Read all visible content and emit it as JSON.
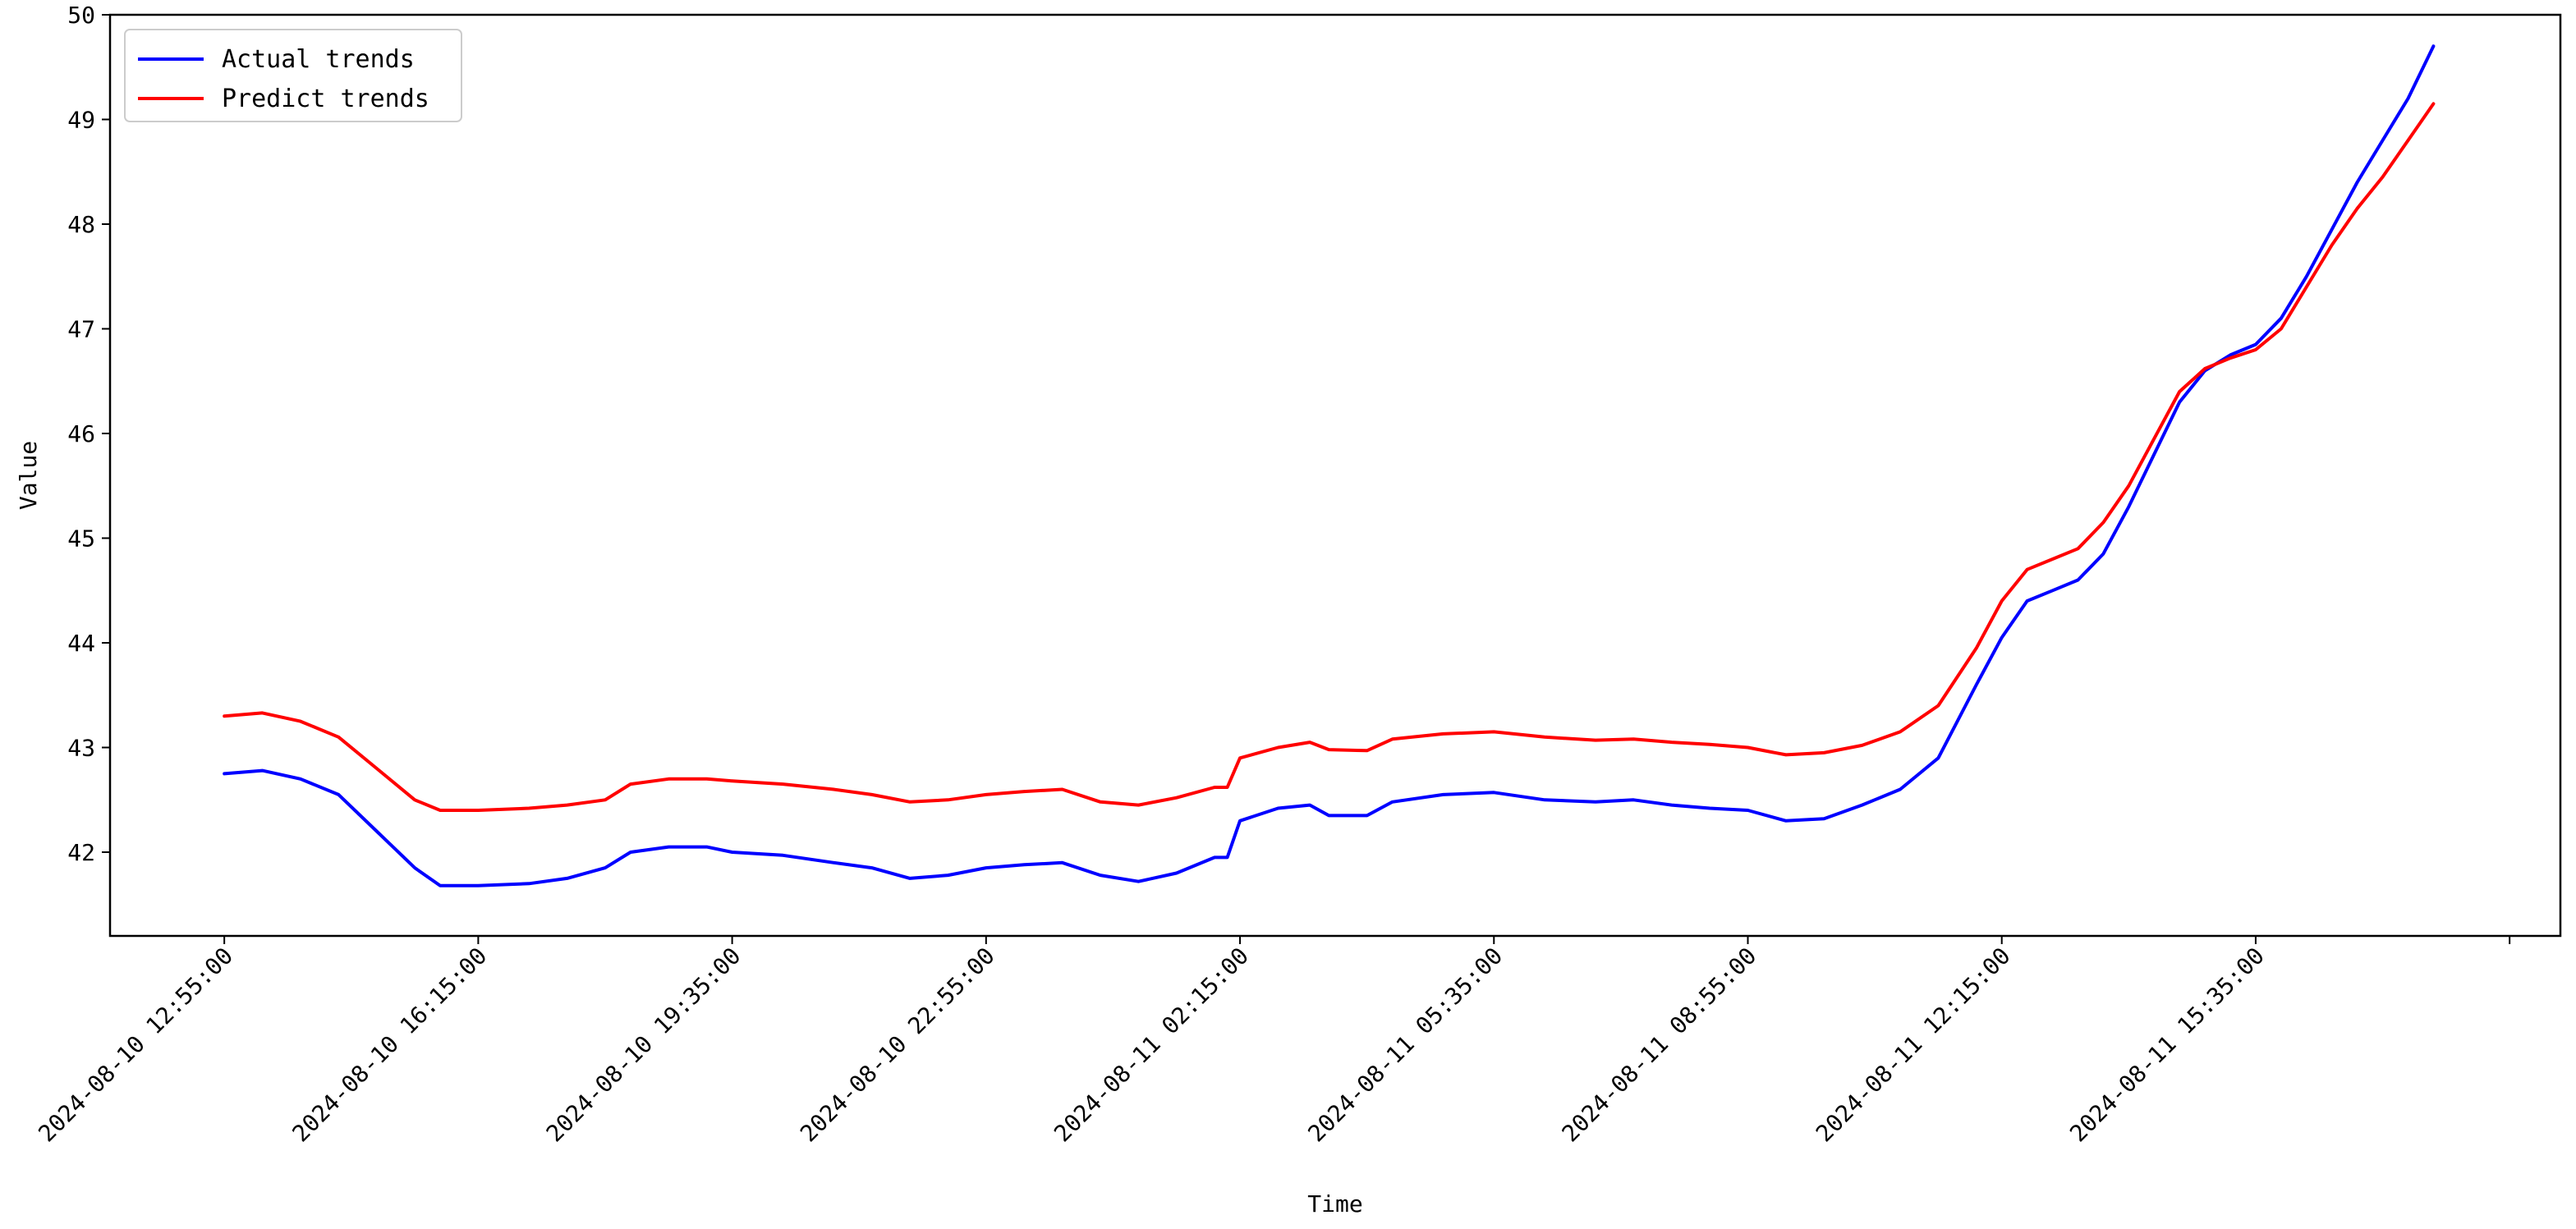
{
  "chart_data": {
    "type": "line",
    "title": "",
    "xlabel": "Time",
    "ylabel": "Value",
    "x_tick_labels": [
      "2024-08-10 12:55:00",
      "2024-08-10 16:15:00",
      "2024-08-10 19:35:00",
      "2024-08-10 22:55:00",
      "2024-08-11 02:15:00",
      "2024-08-11 05:35:00",
      "2024-08-11 08:55:00",
      "2024-08-11 12:15:00",
      "2024-08-11 15:35:00"
    ],
    "y_ticks": [
      42,
      43,
      44,
      45,
      46,
      47,
      48,
      49,
      50
    ],
    "ylim": [
      41.2,
      50.0
    ],
    "xlim": [
      "2024-08-10 11:25:00",
      "2024-08-11 19:35:00"
    ],
    "grid": false,
    "legend_position": "upper-left",
    "series": [
      {
        "name": "Actual trends",
        "color": "#0000ff",
        "points": [
          [
            "2024-08-10 12:55:00",
            42.75
          ],
          [
            "2024-08-10 13:25:00",
            42.78
          ],
          [
            "2024-08-10 13:55:00",
            42.7
          ],
          [
            "2024-08-10 14:25:00",
            42.55
          ],
          [
            "2024-08-10 14:55:00",
            42.2
          ],
          [
            "2024-08-10 15:25:00",
            41.85
          ],
          [
            "2024-08-10 15:45:00",
            41.68
          ],
          [
            "2024-08-10 16:15:00",
            41.68
          ],
          [
            "2024-08-10 16:55:00",
            41.7
          ],
          [
            "2024-08-10 17:25:00",
            41.75
          ],
          [
            "2024-08-10 17:55:00",
            41.85
          ],
          [
            "2024-08-10 18:15:00",
            42.0
          ],
          [
            "2024-08-10 18:45:00",
            42.05
          ],
          [
            "2024-08-10 19:15:00",
            42.05
          ],
          [
            "2024-08-10 19:35:00",
            42.0
          ],
          [
            "2024-08-10 20:15:00",
            41.97
          ],
          [
            "2024-08-10 20:55:00",
            41.9
          ],
          [
            "2024-08-10 21:25:00",
            41.85
          ],
          [
            "2024-08-10 21:55:00",
            41.75
          ],
          [
            "2024-08-10 22:25:00",
            41.78
          ],
          [
            "2024-08-10 22:55:00",
            41.85
          ],
          [
            "2024-08-10 23:25:00",
            41.88
          ],
          [
            "2024-08-10 23:55:00",
            41.9
          ],
          [
            "2024-08-11 00:25:00",
            41.78
          ],
          [
            "2024-08-11 00:55:00",
            41.72
          ],
          [
            "2024-08-11 01:25:00",
            41.8
          ],
          [
            "2024-08-11 01:55:00",
            41.95
          ],
          [
            "2024-08-11 02:05:00",
            41.95
          ],
          [
            "2024-08-11 02:15:00",
            42.3
          ],
          [
            "2024-08-11 02:45:00",
            42.42
          ],
          [
            "2024-08-11 03:10:00",
            42.45
          ],
          [
            "2024-08-11 03:25:00",
            42.35
          ],
          [
            "2024-08-11 03:55:00",
            42.35
          ],
          [
            "2024-08-11 04:15:00",
            42.48
          ],
          [
            "2024-08-11 04:55:00",
            42.55
          ],
          [
            "2024-08-11 05:35:00",
            42.57
          ],
          [
            "2024-08-11 06:15:00",
            42.5
          ],
          [
            "2024-08-11 06:55:00",
            42.48
          ],
          [
            "2024-08-11 07:25:00",
            42.5
          ],
          [
            "2024-08-11 07:55:00",
            42.45
          ],
          [
            "2024-08-11 08:25:00",
            42.42
          ],
          [
            "2024-08-11 08:55:00",
            42.4
          ],
          [
            "2024-08-11 09:25:00",
            42.3
          ],
          [
            "2024-08-11 09:55:00",
            42.32
          ],
          [
            "2024-08-11 10:25:00",
            42.45
          ],
          [
            "2024-08-11 10:55:00",
            42.6
          ],
          [
            "2024-08-11 11:25:00",
            42.9
          ],
          [
            "2024-08-11 11:55:00",
            43.6
          ],
          [
            "2024-08-11 12:15:00",
            44.05
          ],
          [
            "2024-08-11 12:35:00",
            44.4
          ],
          [
            "2024-08-11 12:55:00",
            44.5
          ],
          [
            "2024-08-11 13:15:00",
            44.6
          ],
          [
            "2024-08-11 13:35:00",
            44.85
          ],
          [
            "2024-08-11 13:55:00",
            45.3
          ],
          [
            "2024-08-11 14:15:00",
            45.8
          ],
          [
            "2024-08-11 14:35:00",
            46.3
          ],
          [
            "2024-08-11 14:55:00",
            46.6
          ],
          [
            "2024-08-11 15:15:00",
            46.75
          ],
          [
            "2024-08-11 15:35:00",
            46.85
          ],
          [
            "2024-08-11 15:55:00",
            47.1
          ],
          [
            "2024-08-11 16:15:00",
            47.5
          ],
          [
            "2024-08-11 16:35:00",
            47.95
          ],
          [
            "2024-08-11 16:55:00",
            48.4
          ],
          [
            "2024-08-11 17:15:00",
            48.8
          ],
          [
            "2024-08-11 17:35:00",
            49.2
          ],
          [
            "2024-08-11 17:55:00",
            49.7
          ]
        ]
      },
      {
        "name": "Predict trends",
        "color": "#ff0000",
        "points": [
          [
            "2024-08-10 12:55:00",
            43.3
          ],
          [
            "2024-08-10 13:25:00",
            43.33
          ],
          [
            "2024-08-10 13:55:00",
            43.25
          ],
          [
            "2024-08-10 14:25:00",
            43.1
          ],
          [
            "2024-08-10 14:55:00",
            42.8
          ],
          [
            "2024-08-10 15:25:00",
            42.5
          ],
          [
            "2024-08-10 15:45:00",
            42.4
          ],
          [
            "2024-08-10 16:15:00",
            42.4
          ],
          [
            "2024-08-10 16:55:00",
            42.42
          ],
          [
            "2024-08-10 17:25:00",
            42.45
          ],
          [
            "2024-08-10 17:55:00",
            42.5
          ],
          [
            "2024-08-10 18:15:00",
            42.65
          ],
          [
            "2024-08-10 18:45:00",
            42.7
          ],
          [
            "2024-08-10 19:15:00",
            42.7
          ],
          [
            "2024-08-10 19:35:00",
            42.68
          ],
          [
            "2024-08-10 20:15:00",
            42.65
          ],
          [
            "2024-08-10 20:55:00",
            42.6
          ],
          [
            "2024-08-10 21:25:00",
            42.55
          ],
          [
            "2024-08-10 21:55:00",
            42.48
          ],
          [
            "2024-08-10 22:25:00",
            42.5
          ],
          [
            "2024-08-10 22:55:00",
            42.55
          ],
          [
            "2024-08-10 23:25:00",
            42.58
          ],
          [
            "2024-08-10 23:55:00",
            42.6
          ],
          [
            "2024-08-11 00:25:00",
            42.48
          ],
          [
            "2024-08-11 00:55:00",
            42.45
          ],
          [
            "2024-08-11 01:25:00",
            42.52
          ],
          [
            "2024-08-11 01:55:00",
            42.62
          ],
          [
            "2024-08-11 02:05:00",
            42.62
          ],
          [
            "2024-08-11 02:15:00",
            42.9
          ],
          [
            "2024-08-11 02:45:00",
            43.0
          ],
          [
            "2024-08-11 03:10:00",
            43.05
          ],
          [
            "2024-08-11 03:25:00",
            42.98
          ],
          [
            "2024-08-11 03:55:00",
            42.97
          ],
          [
            "2024-08-11 04:15:00",
            43.08
          ],
          [
            "2024-08-11 04:55:00",
            43.13
          ],
          [
            "2024-08-11 05:35:00",
            43.15
          ],
          [
            "2024-08-11 06:15:00",
            43.1
          ],
          [
            "2024-08-11 06:55:00",
            43.07
          ],
          [
            "2024-08-11 07:25:00",
            43.08
          ],
          [
            "2024-08-11 07:55:00",
            43.05
          ],
          [
            "2024-08-11 08:25:00",
            43.03
          ],
          [
            "2024-08-11 08:55:00",
            43.0
          ],
          [
            "2024-08-11 09:25:00",
            42.93
          ],
          [
            "2024-08-11 09:55:00",
            42.95
          ],
          [
            "2024-08-11 10:25:00",
            43.02
          ],
          [
            "2024-08-11 10:55:00",
            43.15
          ],
          [
            "2024-08-11 11:25:00",
            43.4
          ],
          [
            "2024-08-11 11:55:00",
            43.95
          ],
          [
            "2024-08-11 12:15:00",
            44.4
          ],
          [
            "2024-08-11 12:35:00",
            44.7
          ],
          [
            "2024-08-11 12:55:00",
            44.8
          ],
          [
            "2024-08-11 13:15:00",
            44.9
          ],
          [
            "2024-08-11 13:35:00",
            45.15
          ],
          [
            "2024-08-11 13:55:00",
            45.5
          ],
          [
            "2024-08-11 14:15:00",
            45.95
          ],
          [
            "2024-08-11 14:35:00",
            46.4
          ],
          [
            "2024-08-11 14:55:00",
            46.62
          ],
          [
            "2024-08-11 15:15:00",
            46.72
          ],
          [
            "2024-08-11 15:35:00",
            46.8
          ],
          [
            "2024-08-11 15:55:00",
            47.0
          ],
          [
            "2024-08-11 16:15:00",
            47.4
          ],
          [
            "2024-08-11 16:35:00",
            47.8
          ],
          [
            "2024-08-11 16:55:00",
            48.15
          ],
          [
            "2024-08-11 17:15:00",
            48.45
          ],
          [
            "2024-08-11 17:35:00",
            48.8
          ],
          [
            "2024-08-11 17:55:00",
            49.15
          ]
        ]
      }
    ]
  }
}
